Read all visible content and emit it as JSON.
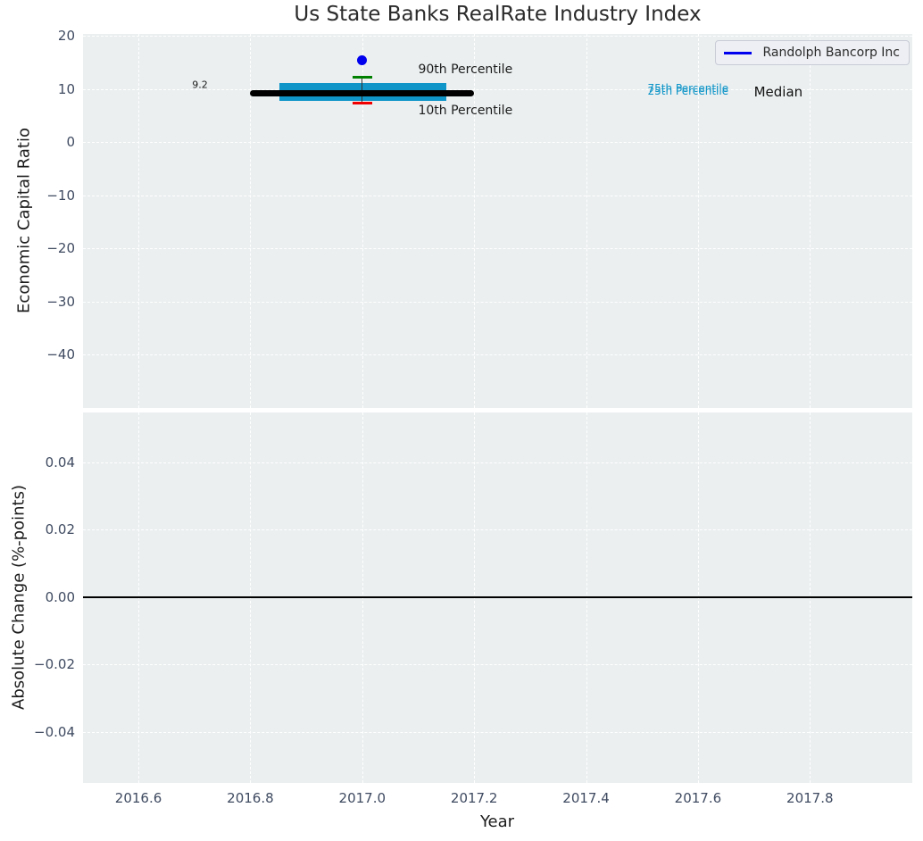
{
  "title": "Us State Banks RealRate Industry Index",
  "legend": {
    "label": "Randolph Bancorp Inc",
    "swatch_color": "#0000ee"
  },
  "colors": {
    "figure_background": "#ffffff",
    "axes_background": "#ebeff0",
    "grid": "#ffffff",
    "tick_label": "#3f4b61",
    "text": "#1c1c1c",
    "box_fill": "#0f95c8",
    "p90_cap": "#008000",
    "p10_cap": "#f00000",
    "median_line": "#000000",
    "whisker": "#2f2f2f",
    "company_point": "#0000ee",
    "zero_line": "#000000"
  },
  "chart_data": [
    {
      "type": "bar",
      "subtype": "boxplot-with-company-point",
      "title": "Us State Banks RealRate Industry Index",
      "ylabel": "Economic Capital Ratio",
      "xlabel": "",
      "grid": true,
      "legend_position": "upper right",
      "legend_entries": [
        "Randolph Bancorp Inc"
      ],
      "xlim": [
        2016.501,
        2017.983
      ],
      "ylim": [
        -50.0,
        20.42
      ],
      "xticks": {
        "values": [
          2016.6,
          2016.8,
          2017.0,
          2017.2,
          2017.4,
          2017.6,
          2017.8
        ],
        "labels": [],
        "show_labels": false
      },
      "yticks": {
        "values": [
          20,
          10,
          0,
          -10,
          -20,
          -30,
          -40
        ],
        "labels": [
          "20",
          "10",
          "0",
          "−10",
          "−20",
          "−30",
          "−40"
        ]
      },
      "box": {
        "x_center": 2017.0,
        "x_left": 2016.852,
        "x_right": 2017.15,
        "q1": 7.8,
        "q3": 11.2,
        "median": 9.2,
        "median_x_left": 2016.8,
        "median_x_right": 2017.2,
        "p10": 7.4,
        "p90": 12.3,
        "cap_halfwidth": 0.018
      },
      "company_point": {
        "label": "Randolph Bancorp Inc",
        "x": 2017.0,
        "y": 15.4
      },
      "annotations": [
        {
          "text": "9.2",
          "x": 2016.71,
          "y": 10.8,
          "color": "#1c1c1c",
          "size": 11,
          "ha": "center"
        },
        {
          "text": "90th Percentile",
          "x": 2017.1,
          "y": 13.7,
          "color": "#1c1c1c",
          "size": 14,
          "ha": "left"
        },
        {
          "text": "10th Percentile",
          "x": 2017.1,
          "y": 6.0,
          "color": "#1c1c1c",
          "size": 14,
          "ha": "left"
        },
        {
          "text": "75th Percentile",
          "x": 2017.51,
          "y": 10.1,
          "color": "#0f95c8",
          "size": 12,
          "ha": "left"
        },
        {
          "text": "25th Percentile",
          "x": 2017.51,
          "y": 9.65,
          "color": "#0f95c8",
          "size": 12,
          "ha": "left"
        },
        {
          "text": "Median",
          "x": 2017.7,
          "y": 9.5,
          "color": "#111111",
          "size": 15,
          "ha": "left"
        }
      ]
    },
    {
      "type": "line",
      "subtype": "empty-with-zero-line",
      "ylabel": "Absolute Change (%-points)",
      "xlabel": "Year",
      "grid": true,
      "xlim": [
        2016.501,
        2017.983
      ],
      "ylim": [
        -0.0552,
        0.0547
      ],
      "xticks": {
        "values": [
          2016.6,
          2016.8,
          2017.0,
          2017.2,
          2017.4,
          2017.6,
          2017.8
        ],
        "labels": [
          "2016.6",
          "2016.8",
          "2017.0",
          "2017.2",
          "2017.4",
          "2017.6",
          "2017.8"
        ],
        "show_labels": true
      },
      "yticks": {
        "values": [
          0.04,
          0.02,
          0.0,
          -0.02,
          -0.04
        ],
        "labels": [
          "0.04",
          "0.02",
          "0.00",
          "−0.02",
          "−0.04"
        ]
      },
      "zero_line_y": 0.0,
      "series": []
    }
  ]
}
